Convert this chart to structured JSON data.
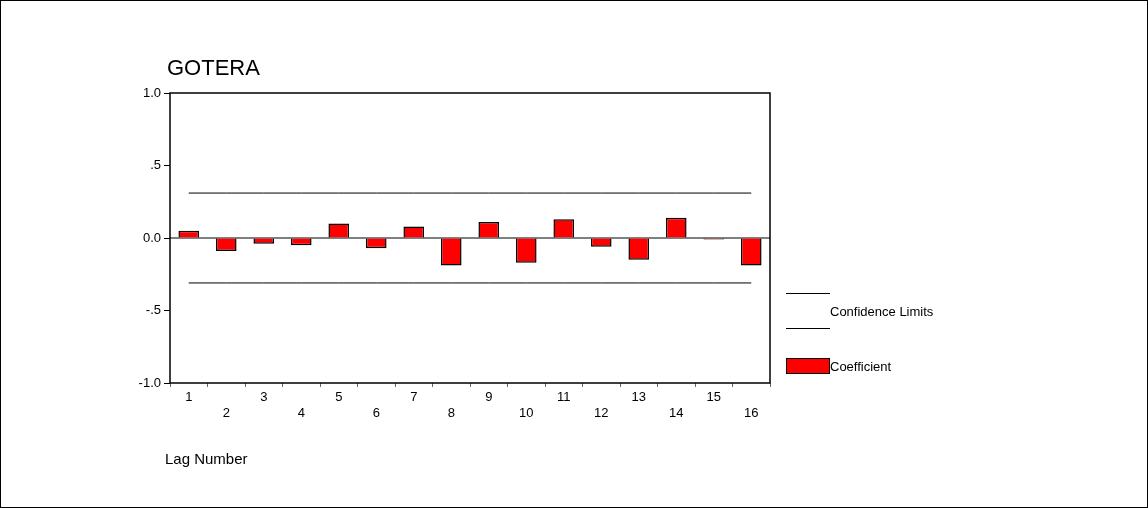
{
  "chart_data": {
    "type": "bar",
    "title": "GOTERA",
    "xlabel": "Lag Number",
    "categories": [
      "1",
      "2",
      "3",
      "4",
      "5",
      "6",
      "7",
      "8",
      "9",
      "10",
      "11",
      "12",
      "13",
      "14",
      "15",
      "16"
    ],
    "series": [
      {
        "name": "Coefficient",
        "color": "#ff0000",
        "values": [
          0.05,
          -0.09,
          -0.04,
          -0.05,
          0.1,
          -0.07,
          0.08,
          -0.19,
          0.11,
          -0.17,
          0.13,
          -0.06,
          -0.15,
          0.14,
          -0.01,
          -0.19
        ]
      },
      {
        "name": "Confidence Limits",
        "type": "line",
        "color": "#000000",
        "values": [
          0.31,
          0.31,
          0.31,
          0.31,
          0.31,
          0.31,
          0.31,
          0.31,
          0.31,
          0.31,
          0.31,
          0.31,
          0.31,
          0.31,
          0.31,
          0.31
        ]
      },
      {
        "type": "line",
        "color": "#000000",
        "values": [
          -0.31,
          -0.31,
          -0.31,
          -0.31,
          -0.31,
          -0.31,
          -0.31,
          -0.31,
          -0.31,
          -0.31,
          -0.31,
          -0.31,
          -0.31,
          -0.31,
          -0.31,
          -0.31
        ]
      }
    ],
    "ylim": [
      -1,
      1
    ],
    "yticks": [
      {
        "value": -1,
        "label": "-1.0"
      },
      {
        "value": -0.5,
        "label": "-.5"
      },
      {
        "value": 0,
        "label": "0.0"
      },
      {
        "value": 0.5,
        "label": ".5"
      },
      {
        "value": 1,
        "label": "1.0"
      }
    ],
    "grid": false,
    "legend": "right",
    "marker": "none",
    "line_style": "solid"
  }
}
